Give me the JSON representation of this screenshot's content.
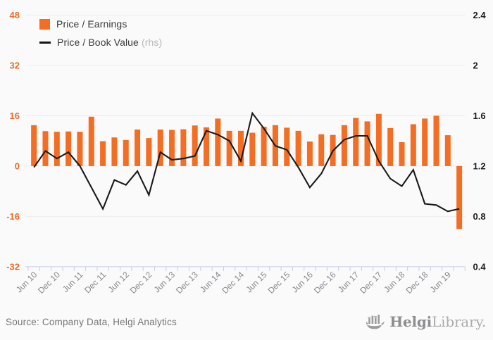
{
  "chart_data": {
    "type": "bar+line combo",
    "categories": [
      "Jun 10",
      "Sep 10",
      "Dec 10",
      "Mar 11",
      "Jun 11",
      "Sep 11",
      "Dec 11",
      "Mar 12",
      "Jun 12",
      "Sep 12",
      "Dec 12",
      "Mar 13",
      "Jun 13",
      "Sep 13",
      "Dec 13",
      "Mar 14",
      "Jun 14",
      "Sep 14",
      "Dec 14",
      "Mar 15",
      "Jun 15",
      "Sep 15",
      "Dec 15",
      "Mar 16",
      "Jun 16",
      "Sep 16",
      "Dec 16",
      "Mar 17",
      "Jun 17",
      "Sep 17",
      "Dec 17",
      "Mar 18",
      "Jun 18",
      "Sep 18",
      "Dec 18",
      "Mar 19",
      "Jun 19",
      "Sep 19"
    ],
    "x_tick_labels": [
      "Jun 10",
      "Dec 10",
      "Jun 11",
      "Dec 11",
      "Jun 12",
      "Dec 12",
      "Jun 13",
      "Dec 13",
      "Jun 14",
      "Dec 14",
      "Jun 15",
      "Dec 15",
      "Jun 16",
      "Dec 16",
      "Jun 17",
      "Dec 17",
      "Jun 18",
      "Dec 18",
      "Jun 19"
    ],
    "series": [
      {
        "name": "Price / Earnings",
        "type": "bar",
        "axis": "left",
        "color": "#f36d22",
        "values": [
          13.0,
          11.1,
          10.9,
          11.0,
          10.9,
          15.7,
          7.9,
          9.1,
          8.3,
          11.6,
          8.9,
          11.6,
          11.5,
          11.7,
          12.9,
          12.3,
          15.1,
          11.2,
          11.2,
          10.6,
          12.5,
          13.0,
          12.2,
          11.2,
          7.8,
          10.1,
          9.9,
          13.0,
          15.3,
          14.2,
          16.6,
          12.1,
          7.6,
          13.3,
          15.1,
          16.0,
          9.8,
          -20.0
        ]
      },
      {
        "name": "Price / Book Value",
        "type": "line",
        "axis": "right",
        "color": "#1a1a1a",
        "values": [
          1.19,
          1.32,
          1.26,
          1.31,
          1.2,
          1.03,
          0.86,
          1.09,
          1.05,
          1.16,
          0.97,
          1.31,
          1.25,
          1.26,
          1.28,
          1.48,
          1.45,
          1.4,
          1.24,
          1.62,
          1.5,
          1.36,
          1.33,
          1.19,
          1.03,
          1.14,
          1.32,
          1.41,
          1.44,
          1.44,
          1.24,
          1.1,
          1.04,
          1.17,
          0.9,
          0.89,
          0.84,
          0.86
        ]
      }
    ],
    "left_axis": {
      "ticks": [
        "48",
        "32",
        "16",
        "0",
        "-16",
        "-32"
      ],
      "range": [
        -32,
        48
      ],
      "color": "#ed6b24"
    },
    "right_axis": {
      "ticks": [
        "2.4",
        "2",
        "1.6",
        "1.2",
        "0.8",
        "0.4"
      ],
      "range": [
        0.4,
        2.4
      ],
      "color": "#1d1d1d",
      "label_suffix": "(rhs)"
    },
    "grid": true,
    "legend_position": "top-left"
  },
  "footer": {
    "source": "Source: Company Data, Helgi Analytics",
    "logo_helgi": "Helgi",
    "logo_library": "Library."
  }
}
